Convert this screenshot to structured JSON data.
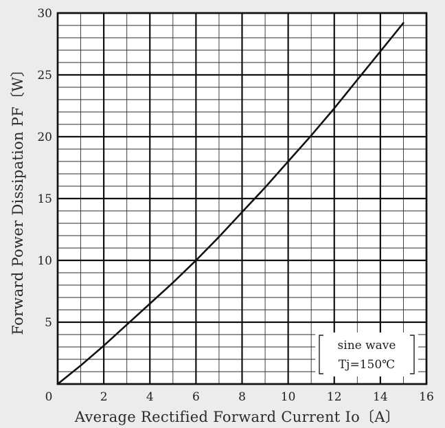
{
  "chart_data": {
    "type": "line",
    "xlabel": "Average Rectified Forward Current Io〔A〕",
    "ylabel": "Forward Power Dissipation PF〔W〕",
    "xlim": [
      0,
      16
    ],
    "ylim": [
      0,
      30
    ],
    "x_ticks": [
      "0",
      "2",
      "4",
      "6",
      "8",
      "10",
      "12",
      "14",
      "16"
    ],
    "y_ticks": [
      "5",
      "10",
      "15",
      "20",
      "25",
      "30"
    ],
    "grid": true,
    "annotation": {
      "line1": "sine wave",
      "line2": "Tj=150℃",
      "position": "bottom-right"
    },
    "series": [
      {
        "x": [
          0,
          1,
          2,
          3,
          4,
          5,
          6,
          7,
          8,
          9,
          10,
          11,
          12,
          13,
          14,
          15
        ],
        "y": [
          0,
          1.5,
          3.1,
          4.8,
          6.5,
          8.2,
          10.0,
          11.9,
          13.9,
          15.9,
          18.0,
          20.1,
          22.3,
          24.6,
          26.9,
          29.2
        ]
      }
    ]
  }
}
